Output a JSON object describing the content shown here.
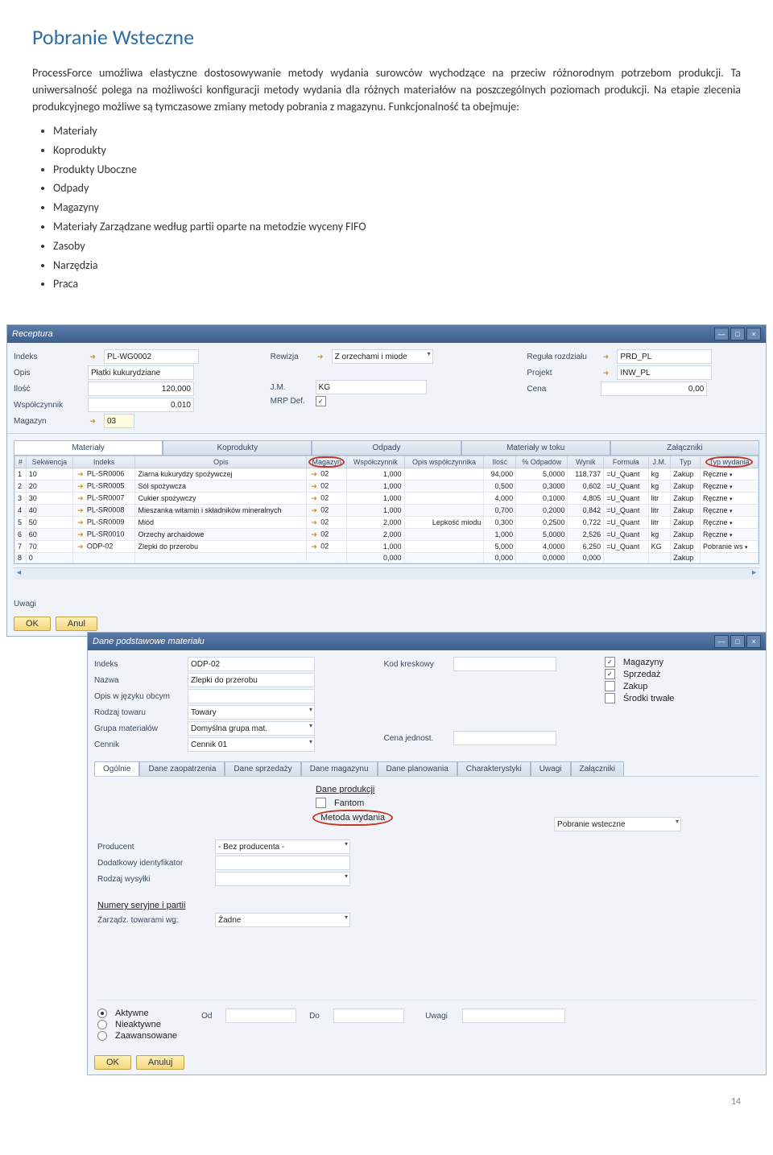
{
  "heading": "Pobranie Wsteczne",
  "intro": "ProcessForce umożliwa elastyczne dostosowywanie metody wydania surowców wychodzące na przeciw różnorodnym potrzebom produkcji. Ta uniwersalność polega na możliwości konfiguracji metody wydania dla różnych materiałów na poszczególnych poziomach produkcji. Na etapie zlecenia produkcyjnego możliwe są tymczasowe zmiany metody pobrania z magazynu. Funkcjonalność ta obejmuje:",
  "bullets": [
    "Materiały",
    "Koprodukty",
    "Produkty Uboczne",
    "Odpady",
    "Magazyny",
    "Materiały Zarządzane według partii oparte na metodzie wyceny  FIFO",
    "Zasoby",
    "Narzędzia",
    "Praca"
  ],
  "win1": {
    "title": "Receptura",
    "form": {
      "l_indeks": "Indeks",
      "v_indeks": "PL-WG0002",
      "l_opis": "Opis",
      "v_opis": "Płatki kukurydziane",
      "l_ilosc": "Ilość",
      "v_ilosc": "120,000",
      "l_wsp": "Współczynnik",
      "v_wsp": "0,010",
      "l_mag": "Magazyn",
      "v_mag": "03",
      "l_rew": "Rewizja",
      "v_rew": "Z orzechami i miode",
      "l_jm": "J.M.",
      "v_jm": "KG",
      "l_mrp": "MRP Def.",
      "l_reg": "Reguła rozdziału",
      "v_reg": "PRD_PL",
      "l_proj": "Projekt",
      "v_proj": "INW_PL",
      "l_cena": "Cena",
      "v_cena": "0,00"
    },
    "tabs": [
      "Materiały",
      "Koprodukty",
      "Odpady",
      "Materiały w toku",
      "Załączniki"
    ],
    "cols": [
      "#",
      "Sekwencja",
      "Indeks",
      "Opis",
      "Magazyn",
      "Współczynnik",
      "Opis współczynnika",
      "Ilość",
      "% Odpadów",
      "Wynik",
      "Formuła",
      "J.M.",
      "Typ",
      "Typ wydania"
    ],
    "rows": [
      [
        "1",
        "10",
        "PL-SR0006",
        "Ziarna kukurydzy spożywczej",
        "02",
        "1,000",
        "",
        "94,000",
        "5,0000",
        "118,737",
        "=U_Quant",
        "kg",
        "Zakup",
        "Ręczne"
      ],
      [
        "2",
        "20",
        "PL-SR0005",
        "Sól spożywcza",
        "02",
        "1,000",
        "",
        "0,500",
        "0,3000",
        "0,602",
        "=U_Quant",
        "kg",
        "Zakup",
        "Ręczne"
      ],
      [
        "3",
        "30",
        "PL-SR0007",
        "Cukier spożywczy",
        "02",
        "1,000",
        "",
        "4,000",
        "0,1000",
        "4,805",
        "=U_Quant",
        "litr",
        "Zakup",
        "Ręczne"
      ],
      [
        "4",
        "40",
        "PL-SR0008",
        "Mieszanka witamin i składników mineralnych",
        "02",
        "1,000",
        "",
        "0,700",
        "0,2000",
        "0,842",
        "=U_Quant",
        "litr",
        "Zakup",
        "Ręczne"
      ],
      [
        "5",
        "50",
        "PL-SR0009",
        "Miód",
        "02",
        "2,000",
        "Lepkość miodu",
        "0,300",
        "0,2500",
        "0,722",
        "=U_Quant",
        "litr",
        "Zakup",
        "Ręczne"
      ],
      [
        "6",
        "60",
        "PL-SR0010",
        "Orzechy archaidowe",
        "02",
        "2,000",
        "",
        "1,000",
        "5,0000",
        "2,526",
        "=U_Quant",
        "kg",
        "Zakup",
        "Ręczne"
      ],
      [
        "7",
        "70",
        "ODP-02",
        "Zlepki do przerobu",
        "02",
        "1,000",
        "",
        "5,000",
        "4,0000",
        "6,250",
        "=U_Quant",
        "KG",
        "Zakup",
        "Pobranie ws"
      ],
      [
        "8",
        "0",
        "",
        "",
        "",
        "0,000",
        "",
        "0,000",
        "0,0000",
        "0,000",
        "",
        "",
        "Zakup",
        ""
      ]
    ],
    "uwagi": "Uwagi",
    "ok": "OK",
    "anul": "Anul"
  },
  "win2": {
    "title": "Dane podstawowe materiału",
    "l_indeks": "Indeks",
    "v_indeks": "ODP-02",
    "l_nazwa": "Nazwa",
    "v_nazwa": "Zlepki do przerobu",
    "l_opis": "Opis w języku obcym",
    "l_rodz": "Rodzaj towaru",
    "v_rodz": "Towary",
    "l_grupa": "Grupa materiałów",
    "v_grupa": "Domyślna grupa mat.",
    "l_cennik": "Cennik",
    "v_cennik": "Cennik 01",
    "l_kod": "Kod kreskowy",
    "l_cenaj": "Cena jednost.",
    "cb_mag": "Magazyny",
    "cb_spr": "Sprzedaż",
    "cb_zak": "Zakup",
    "cb_sro": "Środki trwałe",
    "tabs": [
      "Ogólnie",
      "Dane zaopatrzenia",
      "Dane sprzedaży",
      "Dane magazynu",
      "Dane planowania",
      "Charakterystyki",
      "Uwagi",
      "Załączniki"
    ],
    "daneprod": "Dane produkcji",
    "fantom": "Fantom",
    "l_metoda": "Metoda wydania",
    "v_metoda": "Pobranie wsteczne",
    "l_prod": "Producent",
    "v_prod": "- Bez producenta -",
    "l_dod": "Dodatkowy identyfikator",
    "l_rodzw": "Rodzaj wysyłki",
    "l_numser": "Numery seryjne i partii",
    "l_zarz": "Zarządz. towarami wg:",
    "v_zarz": "Żadne",
    "r_akt": "Aktywne",
    "r_nie": "Nieaktywne",
    "r_zaa": "Zaawansowane",
    "l_od": "Od",
    "l_do": "Do",
    "l_uw": "Uwagi",
    "ok": "OK",
    "anul": "Anuluj"
  },
  "pagenum": "14"
}
